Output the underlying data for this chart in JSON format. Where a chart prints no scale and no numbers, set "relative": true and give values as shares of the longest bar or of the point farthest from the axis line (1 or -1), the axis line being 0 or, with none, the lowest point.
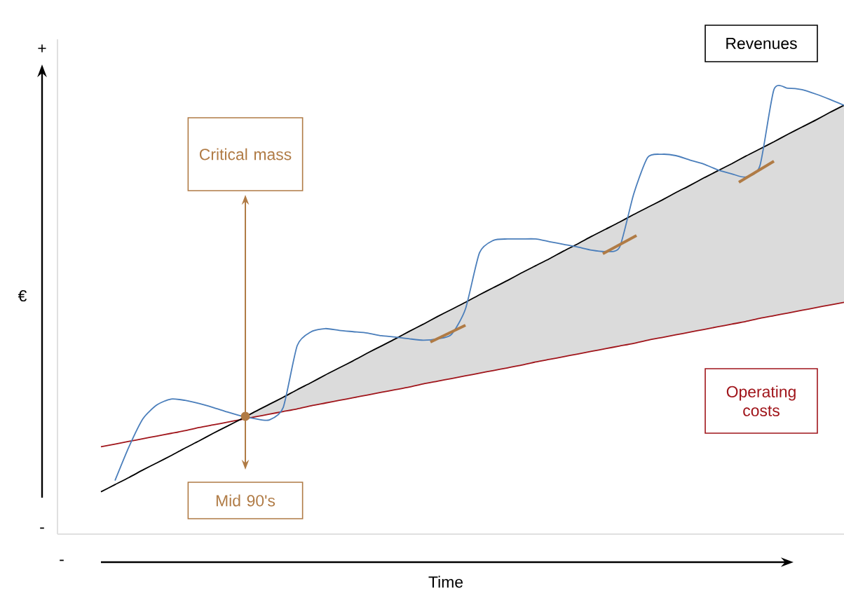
{
  "chart_data": {
    "type": "line",
    "relative": true,
    "xlabel": "Time",
    "ylabel": "€",
    "categories": [
      null,
      null,
      null,
      null,
      null,
      null,
      null,
      null,
      null,
      null,
      null,
      null,
      null,
      null,
      null,
      null,
      null,
      null,
      null,
      null,
      null,
      null,
      null,
      null,
      null,
      null,
      null,
      null,
      null,
      null,
      null,
      null,
      null,
      null,
      null,
      null,
      null,
      null,
      null,
      null,
      null,
      null,
      null,
      null,
      null,
      null,
      null,
      null,
      null,
      null,
      null,
      null,
      null,
      null
    ],
    "series": [
      {
        "name": "Operating costs",
        "color": "#a0151b",
        "values": [
          0.196,
          0.202,
          0.208,
          0.214,
          0.22,
          0.226,
          0.232,
          0.239,
          0.245,
          0.251,
          0.257,
          0.263,
          0.269,
          0.275,
          0.281,
          0.288,
          0.294,
          0.3,
          0.306,
          0.312,
          0.318,
          0.324,
          0.33,
          0.337,
          0.343,
          0.349,
          0.355,
          0.361,
          0.367,
          0.373,
          0.379,
          0.386,
          0.392,
          0.398,
          0.404,
          0.41,
          0.416,
          0.422,
          0.428,
          0.435,
          0.441,
          0.447,
          0.453,
          0.459,
          0.465,
          0.471,
          0.477,
          0.484,
          0.49,
          0.496,
          0.502,
          0.508,
          0.514,
          0.52
        ]
      },
      {
        "name": "Revenues",
        "color": "#000000",
        "values": [
          0.095,
          0.111,
          0.127,
          0.144,
          0.16,
          0.176,
          0.193,
          0.209,
          0.226,
          0.242,
          0.258,
          0.275,
          0.291,
          0.307,
          0.324,
          0.34,
          0.357,
          0.373,
          0.389,
          0.406,
          0.422,
          0.438,
          0.455,
          0.471,
          0.488,
          0.504,
          0.52,
          0.537,
          0.553,
          0.569,
          0.586,
          0.602,
          0.618,
          0.635,
          0.651,
          0.668,
          0.684,
          0.7,
          0.717,
          0.733,
          0.749,
          0.766,
          0.782,
          0.799,
          0.815,
          0.831,
          0.848,
          0.864,
          0.88,
          0.897,
          0.913,
          0.929,
          0.946,
          0.962
        ]
      },
      {
        "color": "#4a7ebb",
        "values": [
          null,
          0.12,
          0.196,
          0.259,
          0.29,
          0.303,
          0.3,
          0.293,
          0.284,
          0.274,
          0.265,
          0.259,
          0.256,
          0.284,
          0.423,
          0.454,
          0.461,
          0.457,
          0.454,
          0.451,
          0.445,
          0.442,
          0.438,
          0.435,
          0.438,
          0.448,
          0.505,
          0.631,
          0.659,
          0.662,
          0.662,
          0.662,
          0.656,
          0.65,
          0.644,
          0.637,
          0.634,
          0.644,
          0.763,
          0.845,
          0.852,
          0.849,
          0.839,
          0.83,
          0.817,
          0.808,
          0.801,
          0.826,
          0.997,
          1.0,
          0.997,
          0.987,
          0.975,
          0.962
        ]
      }
    ],
    "annotations": [
      "Critical mass",
      "Mid 90's",
      "+",
      "-",
      "-"
    ]
  }
}
